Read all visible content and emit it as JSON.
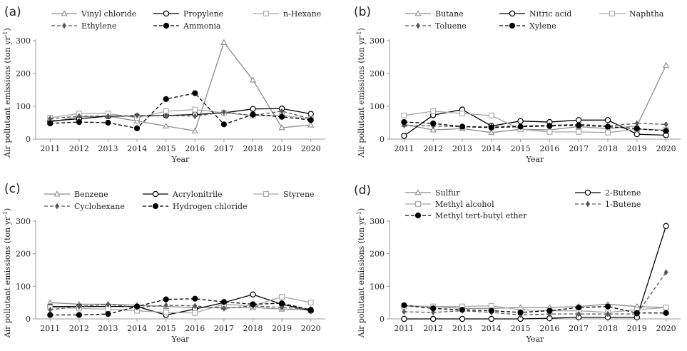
{
  "chart_data": [
    {
      "type": "line",
      "panel": "(a)",
      "xlabel": "Year",
      "ylabel": "Air pollutant emissions  (ton yr",
      "ylabel_unit_sup": "-1",
      "ylabel_close": ")",
      "ylim": [
        0,
        300
      ],
      "yticks": [
        "0",
        "100",
        "200",
        "300"
      ],
      "categories": [
        "2011",
        "2012",
        "2013",
        "2014",
        "2015",
        "2016",
        "2017",
        "2018",
        "2019",
        "2020"
      ],
      "series": [
        {
          "name": "Vinyl chloride",
          "color": "#8c8c8c",
          "dash": "solid",
          "marker": "triangle",
          "values": [
            52,
            68,
            70,
            55,
            40,
            25,
            295,
            180,
            35,
            43
          ]
        },
        {
          "name": "Propylene",
          "color": "#000000",
          "dash": "solid",
          "marker": "circle-open",
          "values": [
            55,
            62,
            70,
            70,
            72,
            75,
            80,
            92,
            93,
            77
          ]
        },
        {
          "name": "n-Hexane",
          "color": "#a6a6a6",
          "dash": "solid",
          "marker": "square-open",
          "values": [
            65,
            78,
            78,
            65,
            85,
            90,
            80,
            72,
            72,
            62
          ]
        },
        {
          "name": "Ethylene",
          "color": "#555555",
          "dash": "dashed",
          "marker": "diamond",
          "values": [
            62,
            70,
            70,
            72,
            72,
            70,
            82,
            72,
            85,
            62
          ]
        },
        {
          "name": "Ammonia",
          "color": "#000000",
          "dash": "dashed",
          "marker": "circle-filled",
          "values": [
            48,
            52,
            50,
            33,
            122,
            140,
            45,
            75,
            68,
            58
          ]
        }
      ]
    },
    {
      "type": "line",
      "panel": "(b)",
      "xlabel": "Year",
      "ylabel": "Air pollutant emissions  (ton yr",
      "ylabel_unit_sup": "-1",
      "ylabel_close": ")",
      "ylim": [
        0,
        300
      ],
      "yticks": [
        "0",
        "100",
        "200",
        "300"
      ],
      "categories": [
        "2011",
        "2012",
        "2013",
        "2014",
        "2015",
        "2016",
        "2017",
        "2018",
        "2019",
        "2020"
      ],
      "series": [
        {
          "name": "Butane",
          "color": "#8c8c8c",
          "dash": "solid",
          "marker": "triangle",
          "values": [
            45,
            28,
            32,
            20,
            30,
            28,
            38,
            32,
            40,
            225
          ]
        },
        {
          "name": "Nitric acid",
          "color": "#000000",
          "dash": "solid",
          "marker": "circle-open",
          "values": [
            10,
            73,
            90,
            40,
            55,
            52,
            58,
            58,
            15,
            12
          ]
        },
        {
          "name": "Naphtha",
          "color": "#a6a6a6",
          "dash": "solid",
          "marker": "square-open",
          "values": [
            72,
            85,
            78,
            72,
            30,
            22,
            22,
            20,
            30,
            28
          ]
        },
        {
          "name": "Toluene",
          "color": "#555555",
          "dash": "dashed",
          "marker": "diamond",
          "values": [
            42,
            40,
            38,
            38,
            40,
            42,
            45,
            40,
            48,
            45
          ]
        },
        {
          "name": "Xylene",
          "color": "#000000",
          "dash": "dashed",
          "marker": "circle-filled",
          "values": [
            52,
            48,
            38,
            35,
            38,
            40,
            42,
            38,
            32,
            25
          ]
        }
      ]
    },
    {
      "type": "line",
      "panel": "(c)",
      "xlabel": "Year",
      "ylabel": "Air pollutant emissions  (ton yr",
      "ylabel_unit_sup": "-1",
      "ylabel_close": ")",
      "ylim": [
        0,
        300
      ],
      "yticks": [
        "0",
        "100",
        "200",
        "300"
      ],
      "categories": [
        "2011",
        "2012",
        "2013",
        "2014",
        "2015",
        "2016",
        "2017",
        "2018",
        "2019",
        "2020"
      ],
      "series": [
        {
          "name": "Benzene",
          "color": "#8c8c8c",
          "dash": "solid",
          "marker": "triangle",
          "values": [
            50,
            45,
            45,
            42,
            38,
            35,
            35,
            35,
            30,
            28
          ]
        },
        {
          "name": "Acrylonitrile",
          "color": "#000000",
          "dash": "solid",
          "marker": "circle-open",
          "values": [
            38,
            38,
            38,
            38,
            12,
            30,
            50,
            75,
            45,
            25
          ]
        },
        {
          "name": "Styrene",
          "color": "#a6a6a6",
          "dash": "solid",
          "marker": "square-open",
          "values": [
            35,
            32,
            30,
            25,
            20,
            18,
            45,
            40,
            68,
            50
          ]
        },
        {
          "name": "Cyclohexane",
          "color": "#555555",
          "dash": "dashed",
          "marker": "diamond",
          "values": [
            28,
            38,
            45,
            35,
            42,
            40,
            32,
            40,
            35,
            30
          ]
        },
        {
          "name": "Hydrogen chloride",
          "color": "#000000",
          "dash": "dashed",
          "marker": "circle-filled",
          "values": [
            12,
            12,
            15,
            38,
            60,
            62,
            52,
            45,
            48,
            28
          ]
        }
      ]
    },
    {
      "type": "line",
      "panel": "(d)",
      "xlabel": "Year",
      "ylabel": "Air pollutant emissions  (ton yr",
      "ylabel_unit_sup": "-1",
      "ylabel_close": ")",
      "ylim": [
        0,
        300
      ],
      "yticks": [
        "0",
        "100",
        "200",
        "300"
      ],
      "categories": [
        "2011",
        "2012",
        "2013",
        "2014",
        "2015",
        "2016",
        "2017",
        "2018",
        "2019",
        "2020"
      ],
      "series": [
        {
          "name": "Sulfur",
          "color": "#8c8c8c",
          "dash": "solid",
          "marker": "triangle",
          "values": [
            40,
            38,
            32,
            32,
            35,
            35,
            38,
            45,
            38,
            35
          ]
        },
        {
          "name": "2-Butene",
          "color": "#000000",
          "dash": "solid",
          "marker": "circle-open",
          "values": [
            0,
            0,
            0,
            0,
            0,
            2,
            5,
            5,
            5,
            285
          ]
        },
        {
          "name": "Methyl alcohol",
          "color": "#a6a6a6",
          "dash": "solid",
          "marker": "square-open",
          "values": [
            38,
            38,
            38,
            40,
            28,
            25,
            25,
            20,
            28,
            35
          ]
        },
        {
          "name": "1-Butene",
          "color": "#555555",
          "dash": "dashed",
          "marker": "diamond",
          "values": [
            22,
            20,
            25,
            20,
            12,
            15,
            15,
            15,
            15,
            143
          ]
        },
        {
          "name": "Methyl tert-butyl ether",
          "color": "#000000",
          "dash": "dashed",
          "marker": "circle-filled",
          "values": [
            42,
            32,
            28,
            25,
            20,
            25,
            35,
            38,
            18,
            18
          ]
        }
      ]
    }
  ]
}
